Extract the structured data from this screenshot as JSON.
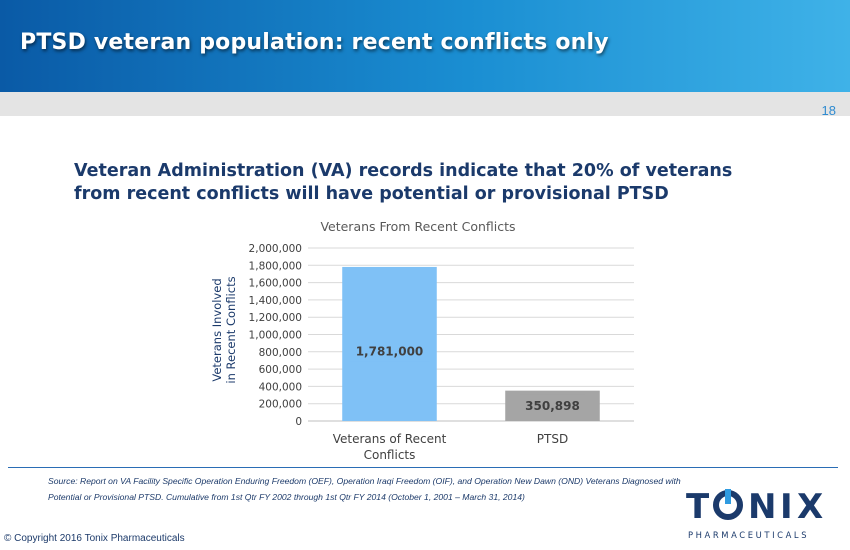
{
  "slide": {
    "title": "PTSD veteran population: recent conflicts only",
    "page_number": "18",
    "headline": "Veteran Administration  (VA) records indicate that 20% of veterans from recent conflicts  will  have potential  or provisional PTSD",
    "source": "Source: Report on VA Facility Specific Operation Enduring Freedom (OEF), Operation Iraqi Freedom (OIF), and Operation New Dawn (OND) Veterans Diagnosed with Potential or Provisional PTSD. Cumulative from 1st Qtr FY 2002 through 1st Qtr FY 2014 (October 1, 2001 – March 31, 2014)",
    "copyright": "© Copyright 2016 Tonix Pharmaceuticals",
    "logo_text": "TONIX",
    "logo_subtext": "PHARMACEUTICALS"
  },
  "colors": {
    "header_dark": "#0a5aa6",
    "header_light": "#3fb2e8",
    "headline": "#1b3a6b",
    "bar_veterans": "#7fc1f6",
    "bar_ptsd": "#a5a5a5",
    "logo_navy": "#1b3a6b",
    "logo_accent": "#2f9be0"
  },
  "chart_data": {
    "type": "bar",
    "title": "Veterans From Recent Conflicts",
    "ylabel": "Veterans Involved in Recent Conflicts",
    "ylabel_lines": [
      "Veterans Involved",
      "in Recent Conflicts"
    ],
    "xlabel": "",
    "categories": [
      {
        "lines": [
          "Veterans of Recent",
          "Conflicts"
        ]
      },
      {
        "lines": [
          "PTSD"
        ]
      }
    ],
    "values": [
      1781000,
      350898
    ],
    "data_labels": [
      "1,781,000",
      "350,898"
    ],
    "bar_colors": [
      "#7fc1f6",
      "#a5a5a5"
    ],
    "ylim": [
      0,
      2000000
    ],
    "yticks": [
      0,
      200000,
      400000,
      600000,
      800000,
      1000000,
      1200000,
      1400000,
      1600000,
      1800000,
      2000000
    ],
    "ytick_labels": [
      "0",
      "200,000",
      "400,000",
      "600,000",
      "800,000",
      "1,000,000",
      "1,200,000",
      "1,400,000",
      "1,600,000",
      "1,800,000",
      "2,000,000"
    ],
    "grid": true,
    "legend": "none"
  }
}
